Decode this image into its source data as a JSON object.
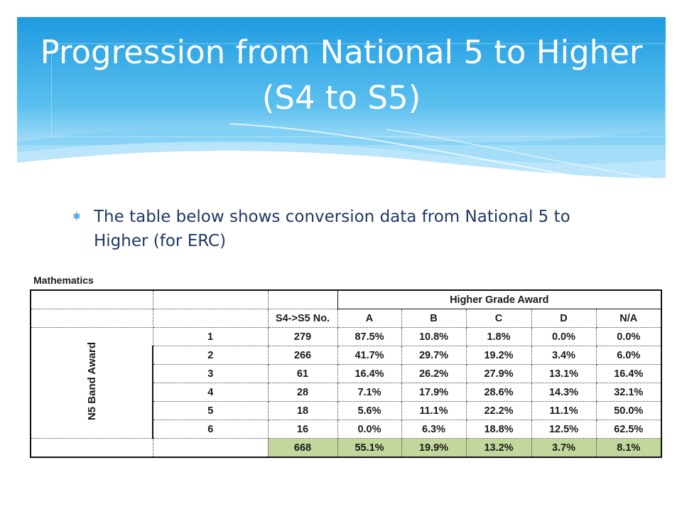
{
  "slide": {
    "title": "Progression from National 5 to Higher (S4 to S5)",
    "bullet": "The table below shows conversion data from National 5 to Higher (for ERC)"
  },
  "table": {
    "subject": "Mathematics",
    "group_header": "Higher Grade Award",
    "side_label": "N5 Band Award",
    "headers": [
      "S4->S5 No.",
      "A",
      "B",
      "C",
      "D",
      "N/A"
    ],
    "rows": [
      {
        "band": "1",
        "no": "279",
        "a": "87.5%",
        "b": "10.8%",
        "c": "1.8%",
        "d": "0.0%",
        "na": "0.0%"
      },
      {
        "band": "2",
        "no": "266",
        "a": "41.7%",
        "b": "29.7%",
        "c": "19.2%",
        "d": "3.4%",
        "na": "6.0%"
      },
      {
        "band": "3",
        "no": "61",
        "a": "16.4%",
        "b": "26.2%",
        "c": "27.9%",
        "d": "13.1%",
        "na": "16.4%"
      },
      {
        "band": "4",
        "no": "28",
        "a": "7.1%",
        "b": "17.9%",
        "c": "28.6%",
        "d": "14.3%",
        "na": "32.1%"
      },
      {
        "band": "5",
        "no": "18",
        "a": "5.6%",
        "b": "11.1%",
        "c": "22.2%",
        "d": "11.1%",
        "na": "50.0%"
      },
      {
        "band": "6",
        "no": "16",
        "a": "0.0%",
        "b": "6.3%",
        "c": "18.8%",
        "d": "12.5%",
        "na": "62.5%"
      }
    ],
    "total": {
      "no": "668",
      "a": "55.1%",
      "b": "19.9%",
      "c": "13.2%",
      "d": "3.7%",
      "na": "8.1%"
    }
  },
  "colors": {
    "banner": "#2aa3e3",
    "total_fill": "#c3d69b",
    "bullet_text": "#1f3864"
  }
}
